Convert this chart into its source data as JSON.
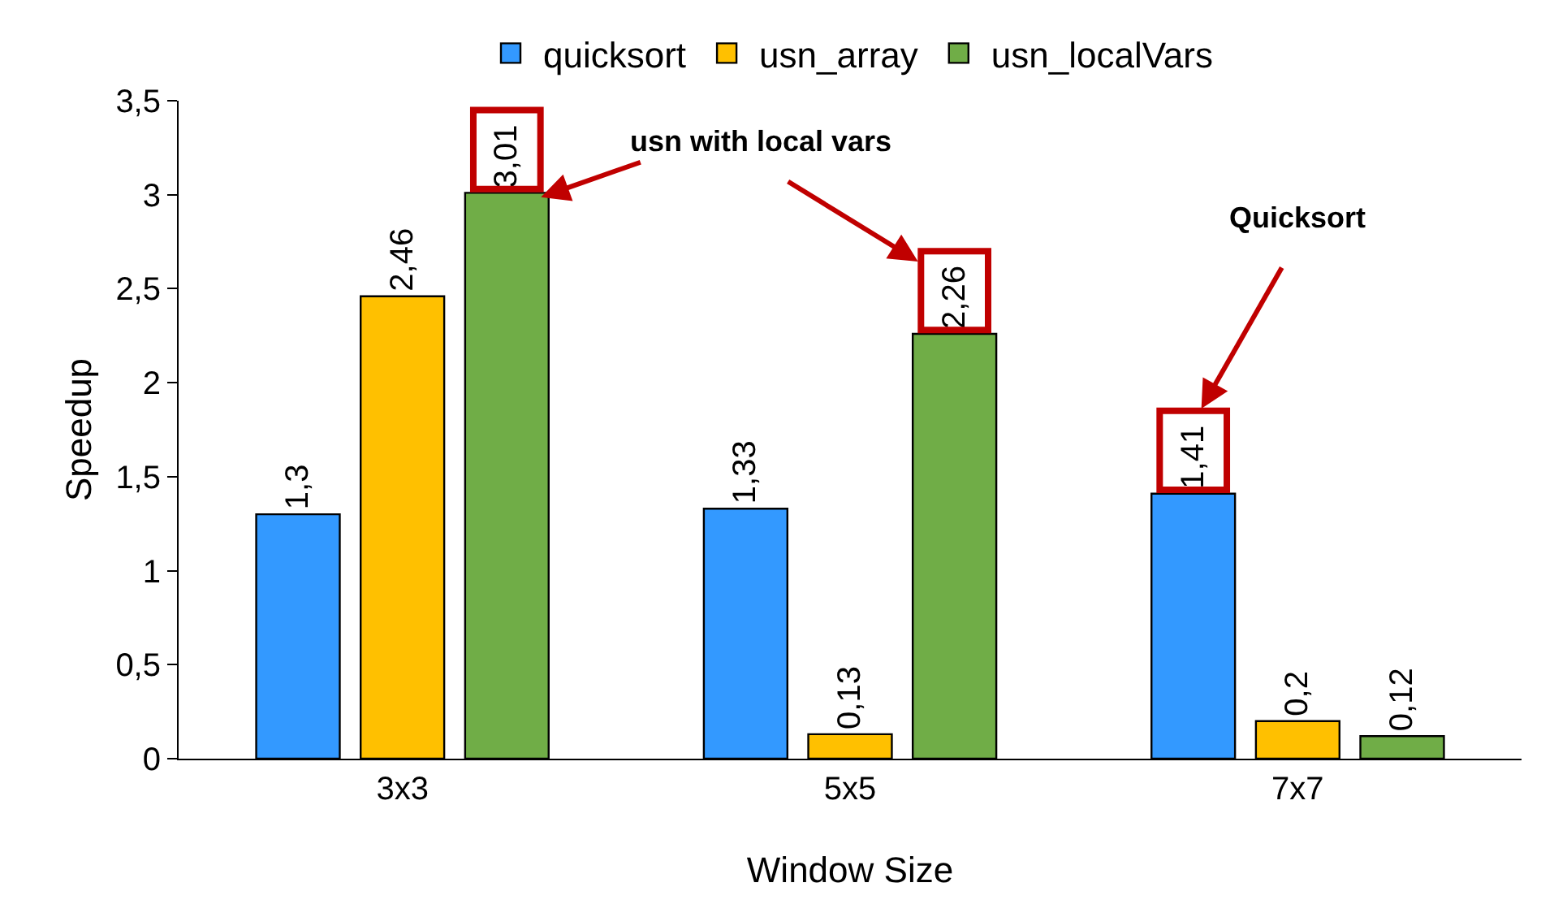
{
  "chart_data": {
    "type": "bar",
    "xlabel": "Window Size",
    "ylabel": "Speedup",
    "categories": [
      "3x3",
      "5x5",
      "7x7"
    ],
    "series": [
      {
        "name": "quicksort",
        "color": "#3399ff",
        "values": [
          1.3,
          1.33,
          1.41
        ],
        "value_labels": [
          "1,3",
          "1,33",
          "1,41"
        ]
      },
      {
        "name": "usn_array",
        "color": "#ffc000",
        "values": [
          2.46,
          0.13,
          0.2
        ],
        "value_labels": [
          "2,46",
          "0,13",
          "0,2"
        ]
      },
      {
        "name": "usn_localVars",
        "color": "#70ad47",
        "values": [
          3.01,
          2.26,
          0.12
        ],
        "value_labels": [
          "3,01",
          "2,26",
          "0,12"
        ]
      }
    ],
    "ylim": [
      0,
      3.5
    ],
    "yticks": [
      0,
      {
        "value": 0.5,
        "label": "0,5"
      },
      1,
      {
        "value": 1.5,
        "label": "1,5"
      },
      2,
      {
        "value": 2.5,
        "label": "2,5"
      },
      3,
      {
        "value": 3.5,
        "label": "3,5"
      }
    ],
    "annotations": [
      "usn with local vars",
      "Quicksort"
    ],
    "grid": false,
    "legend": "top"
  }
}
